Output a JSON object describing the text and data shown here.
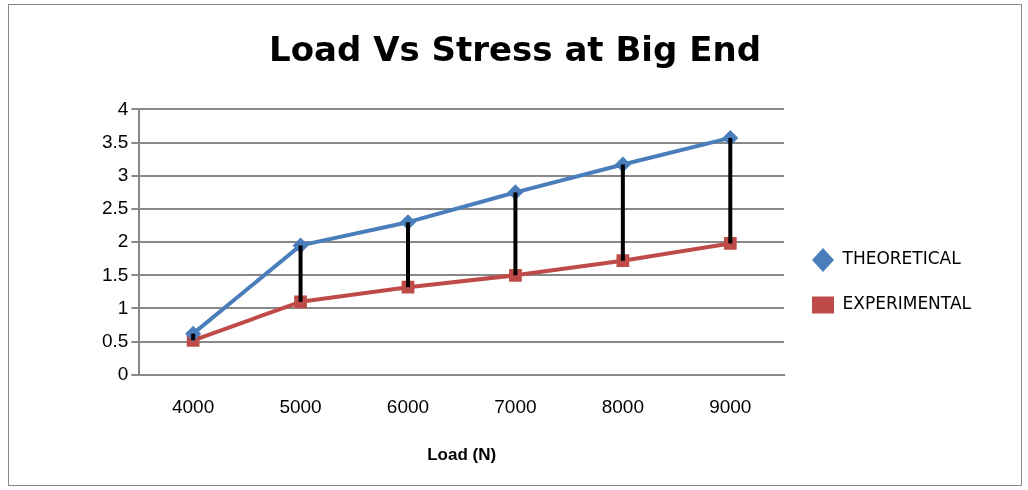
{
  "chart_data": {
    "type": "line",
    "title": "Load Vs Stress at Big End",
    "xlabel": "Load (N)",
    "categories": [
      "4000",
      "5000",
      "6000",
      "7000",
      "8000",
      "9000"
    ],
    "series": [
      {
        "name": "THEORETICAL",
        "color": "#4a7ebb",
        "marker": "diamond",
        "values": [
          0.62,
          1.95,
          2.3,
          2.75,
          3.17,
          3.57
        ],
        "errors": [
          [
            0.52,
            0.62
          ],
          [
            1.1,
            1.95
          ],
          [
            1.32,
            2.3
          ],
          [
            1.5,
            2.75
          ],
          [
            1.72,
            3.17
          ],
          [
            1.98,
            3.57
          ]
        ]
      },
      {
        "name": "EXPERIMENTAL",
        "color": "#be4b48",
        "marker": "square",
        "values": [
          0.52,
          1.1,
          1.32,
          1.5,
          1.72,
          1.98
        ]
      }
    ],
    "ylim": [
      0,
      4
    ],
    "yticks": [
      0,
      0.5,
      1,
      1.5,
      2,
      2.5,
      3,
      3.5,
      4
    ],
    "grid": "y",
    "legend": "right"
  }
}
